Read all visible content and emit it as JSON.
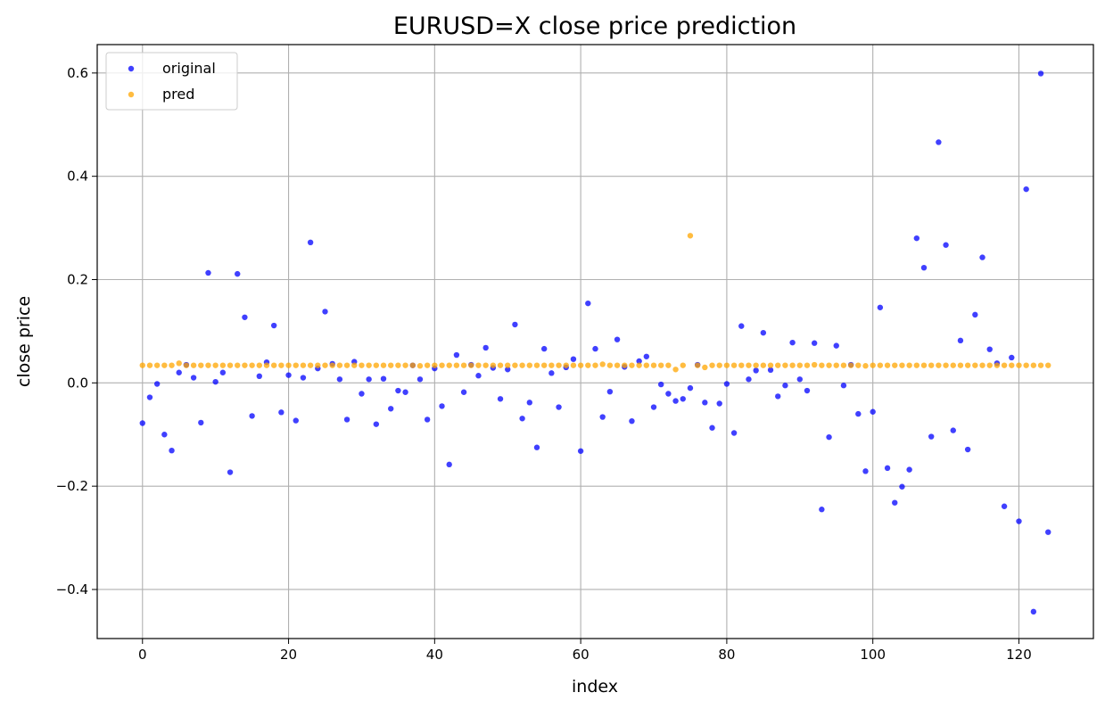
{
  "chart_data": {
    "type": "scatter",
    "title": "EURUSD=X close price prediction",
    "xlabel": "index",
    "ylabel": "close price",
    "xlim": [
      -6.2,
      130.2
    ],
    "ylim": [
      -0.495,
      0.655
    ],
    "xticks": [
      0,
      20,
      40,
      60,
      80,
      100,
      120
    ],
    "yticks": [
      -0.4,
      -0.2,
      0.0,
      0.2,
      0.4,
      0.6
    ],
    "xtick_labels": [
      "0",
      "20",
      "40",
      "60",
      "80",
      "100",
      "120"
    ],
    "ytick_labels": [
      "−0.4",
      "−0.2",
      "0.0",
      "0.2",
      "0.4",
      "0.6"
    ],
    "grid": true,
    "legend_position": "top-left",
    "series": [
      {
        "name": "original",
        "color": "#0000ff",
        "x": [
          0,
          1,
          2,
          3,
          4,
          5,
          6,
          7,
          8,
          9,
          10,
          11,
          12,
          13,
          14,
          15,
          16,
          17,
          18,
          19,
          20,
          21,
          22,
          23,
          24,
          25,
          26,
          27,
          28,
          29,
          30,
          31,
          32,
          33,
          34,
          35,
          36,
          37,
          38,
          39,
          40,
          41,
          42,
          43,
          44,
          45,
          46,
          47,
          48,
          49,
          50,
          51,
          52,
          53,
          54,
          55,
          56,
          57,
          58,
          59,
          60,
          61,
          62,
          63,
          64,
          65,
          66,
          67,
          68,
          69,
          70,
          71,
          72,
          73,
          74,
          75,
          76,
          77,
          78,
          79,
          80,
          81,
          82,
          83,
          84,
          85,
          86,
          87,
          88,
          89,
          90,
          91,
          92,
          93,
          94,
          95,
          96,
          97,
          98,
          99,
          100,
          101,
          102,
          103,
          104,
          105,
          106,
          107,
          108,
          109,
          110,
          111,
          112,
          113,
          114,
          115,
          116,
          117,
          118,
          119,
          120,
          121,
          122,
          123,
          124
        ],
        "y": [
          -0.078,
          -0.028,
          -0.002,
          -0.1,
          -0.131,
          0.02,
          0.035,
          0.01,
          -0.077,
          0.213,
          0.002,
          0.02,
          -0.173,
          0.211,
          0.127,
          -0.064,
          0.013,
          0.04,
          0.111,
          -0.057,
          0.015,
          -0.073,
          0.01,
          0.272,
          0.028,
          0.138,
          0.037,
          0.007,
          -0.071,
          0.041,
          -0.021,
          0.007,
          -0.08,
          0.008,
          -0.05,
          -0.015,
          -0.018,
          0.034,
          0.007,
          -0.071,
          0.028,
          -0.045,
          -0.158,
          0.054,
          -0.018,
          0.035,
          0.014,
          0.068,
          0.029,
          -0.031,
          0.026,
          0.113,
          -0.069,
          -0.038,
          -0.125,
          0.066,
          0.019,
          -0.047,
          0.03,
          0.046,
          -0.132,
          0.154,
          0.066,
          -0.066,
          -0.017,
          0.084,
          0.031,
          -0.074,
          0.042,
          0.051,
          -0.047,
          -0.003,
          -0.021,
          -0.035,
          -0.031,
          -0.01,
          0.035,
          -0.038,
          -0.087,
          -0.04,
          -0.002,
          -0.097,
          0.11,
          0.007,
          0.024,
          0.097,
          0.025,
          -0.026,
          -0.005,
          0.078,
          0.007,
          -0.015,
          0.077,
          -0.245,
          -0.105,
          0.072,
          -0.005,
          0.035,
          -0.06,
          -0.171,
          -0.056,
          0.146,
          -0.165,
          -0.232,
          -0.201,
          -0.168,
          0.28,
          0.223,
          -0.104,
          0.466,
          0.267,
          -0.092,
          0.082,
          -0.129,
          0.132,
          0.243,
          0.065,
          0.038,
          -0.239,
          0.049,
          -0.268,
          0.375,
          -0.443,
          0.599,
          -0.289
        ]
      },
      {
        "name": "pred",
        "color": "#ffa500",
        "x": [
          0,
          1,
          2,
          3,
          4,
          5,
          6,
          7,
          8,
          9,
          10,
          11,
          12,
          13,
          14,
          15,
          16,
          17,
          18,
          19,
          20,
          21,
          22,
          23,
          24,
          25,
          26,
          27,
          28,
          29,
          30,
          31,
          32,
          33,
          34,
          35,
          36,
          37,
          38,
          39,
          40,
          41,
          42,
          43,
          44,
          45,
          46,
          47,
          48,
          49,
          50,
          51,
          52,
          53,
          54,
          55,
          56,
          57,
          58,
          59,
          60,
          61,
          62,
          63,
          64,
          65,
          66,
          67,
          68,
          69,
          70,
          71,
          72,
          73,
          74,
          75,
          76,
          77,
          78,
          79,
          80,
          81,
          82,
          83,
          84,
          85,
          86,
          87,
          88,
          89,
          90,
          91,
          92,
          93,
          94,
          95,
          96,
          97,
          98,
          99,
          100,
          101,
          102,
          103,
          104,
          105,
          106,
          107,
          108,
          109,
          110,
          111,
          112,
          113,
          114,
          115,
          116,
          117,
          118,
          119,
          120,
          121,
          122,
          123,
          124
        ],
        "y": [
          0.034,
          0.034,
          0.034,
          0.034,
          0.034,
          0.038,
          0.034,
          0.034,
          0.034,
          0.034,
          0.034,
          0.034,
          0.034,
          0.034,
          0.034,
          0.034,
          0.034,
          0.034,
          0.034,
          0.034,
          0.034,
          0.034,
          0.034,
          0.034,
          0.034,
          0.034,
          0.034,
          0.034,
          0.034,
          0.034,
          0.034,
          0.034,
          0.034,
          0.034,
          0.034,
          0.034,
          0.034,
          0.034,
          0.033,
          0.034,
          0.034,
          0.034,
          0.034,
          0.034,
          0.034,
          0.034,
          0.034,
          0.034,
          0.034,
          0.034,
          0.034,
          0.034,
          0.034,
          0.034,
          0.034,
          0.034,
          0.034,
          0.034,
          0.034,
          0.034,
          0.034,
          0.034,
          0.034,
          0.036,
          0.034,
          0.034,
          0.034,
          0.034,
          0.034,
          0.034,
          0.034,
          0.034,
          0.034,
          0.026,
          0.034,
          0.285,
          0.034,
          0.03,
          0.034,
          0.034,
          0.034,
          0.034,
          0.034,
          0.034,
          0.034,
          0.034,
          0.034,
          0.034,
          0.034,
          0.034,
          0.034,
          0.034,
          0.035,
          0.034,
          0.034,
          0.034,
          0.034,
          0.034,
          0.034,
          0.033,
          0.034,
          0.034,
          0.034,
          0.034,
          0.034,
          0.034,
          0.034,
          0.034,
          0.034,
          0.034,
          0.034,
          0.034,
          0.034,
          0.034,
          0.034,
          0.034,
          0.034,
          0.034,
          0.034,
          0.034,
          0.034,
          0.034,
          0.034,
          0.034,
          0.034
        ]
      }
    ]
  }
}
